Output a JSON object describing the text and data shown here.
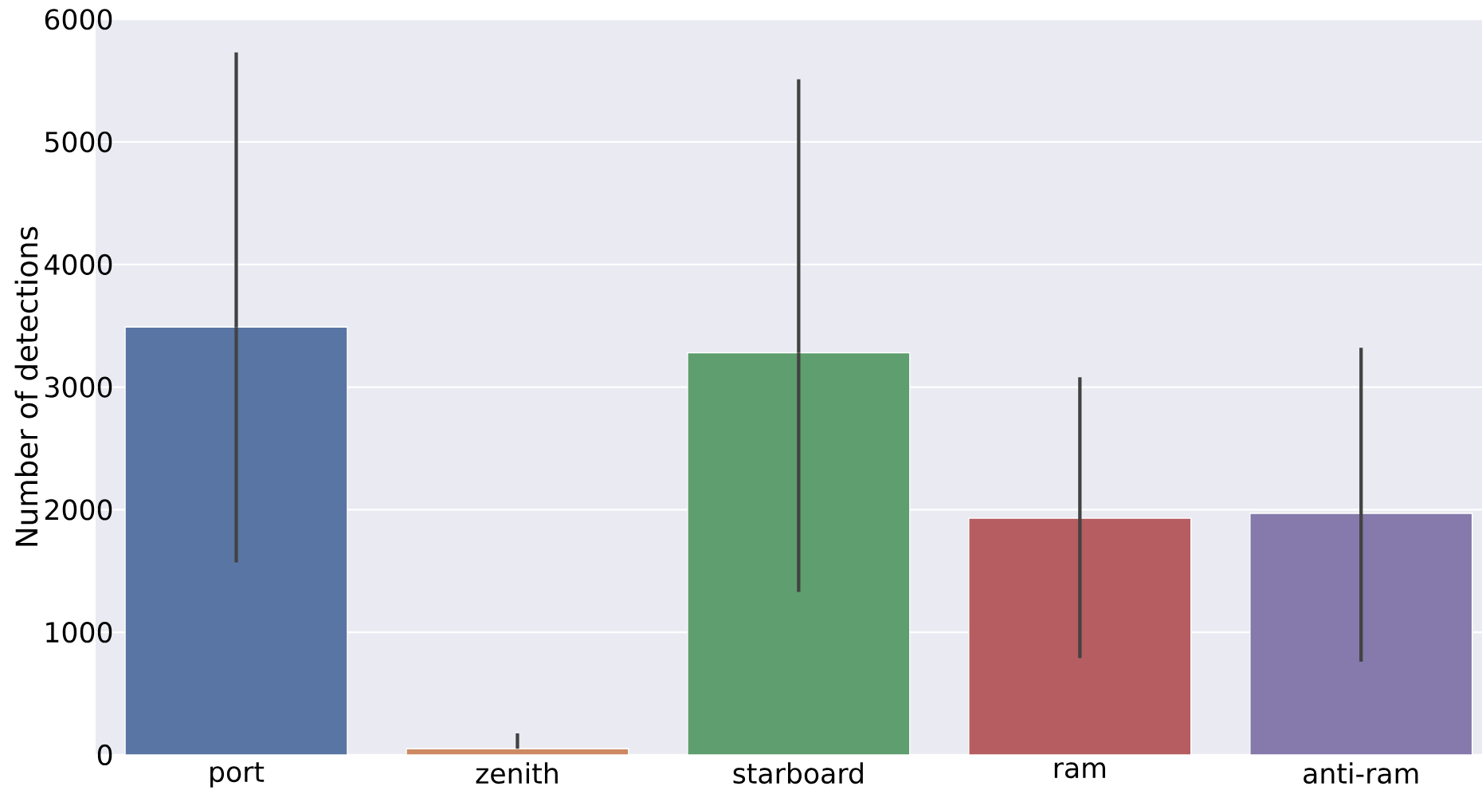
{
  "chart_data": {
    "type": "bar",
    "ylabel": "Number of detections",
    "categories": [
      "port",
      "zenith",
      "starboard",
      "ram",
      "anti-ram"
    ],
    "values": [
      3490,
      50,
      3280,
      1930,
      1970
    ],
    "colors": [
      "#5975a4",
      "#cc8963",
      "#5f9e6e",
      "#b55d60",
      "#857aab"
    ],
    "errors": [
      [
        1570,
        5730
      ],
      [
        50,
        175
      ],
      [
        1330,
        5510
      ],
      [
        790,
        3080
      ],
      [
        760,
        3320
      ]
    ],
    "ylim": [
      0,
      6000
    ],
    "yticks": [
      0,
      1000,
      2000,
      3000,
      4000,
      5000,
      6000
    ],
    "grid": "y"
  }
}
